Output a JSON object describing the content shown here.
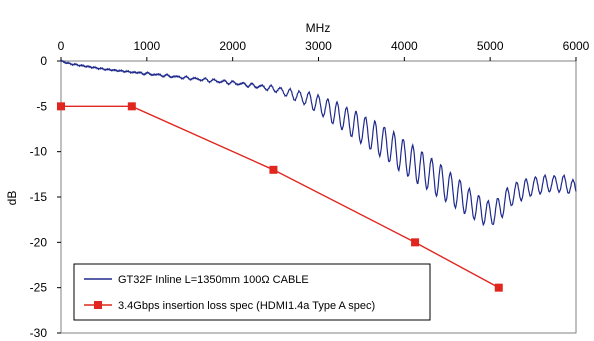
{
  "chart_data": {
    "type": "line",
    "title": "",
    "xlabel": "MHz",
    "ylabel": "dB",
    "xlim": [
      0,
      6000
    ],
    "ylim": [
      -30,
      0
    ],
    "xticks": [
      "0",
      "1000",
      "2000",
      "3000",
      "4000",
      "5000",
      "6000"
    ],
    "yticks": [
      "0",
      "-5",
      "-10",
      "-15",
      "-20",
      "-25",
      "-30"
    ],
    "x_axis_position": "top",
    "grid": false,
    "legend_position": "bottom-left",
    "series": [
      {
        "name": "GT32F Inline L=1350mm 100Ω CABLE",
        "color": "#1f2a8c",
        "marker": "none",
        "x": [
          0,
          100,
          300,
          500,
          800,
          1000,
          1200,
          1500,
          1800,
          2000,
          2300,
          2500,
          2700,
          2900,
          3000,
          3200,
          3500,
          3800,
          4000,
          4300,
          4500,
          4700,
          4800,
          4900,
          5000,
          5100,
          5200,
          5300,
          5500,
          5700,
          5900,
          6000
        ],
        "values": [
          0,
          -0.3,
          -0.6,
          -0.9,
          -1.2,
          -1.4,
          -1.6,
          -1.9,
          -2.2,
          -2.4,
          -2.8,
          -3.1,
          -3.7,
          -4.3,
          -4.8,
          -5.8,
          -7.5,
          -9.2,
          -10.6,
          -12.5,
          -13.8,
          -15.2,
          -15.9,
          -16.5,
          -16.9,
          -16.4,
          -15.2,
          -14.5,
          -13.8,
          -13.5,
          -13.6,
          -14.2
        ],
        "ripple_amplitude": [
          0,
          0,
          0,
          0,
          0,
          0.1,
          0.1,
          0.1,
          0.15,
          0.15,
          0.2,
          0.3,
          0.5,
          0.8,
          1.0,
          1.3,
          1.6,
          1.8,
          1.9,
          1.9,
          1.8,
          1.6,
          1.5,
          1.4,
          1.4,
          1.3,
          1.2,
          1.1,
          1.0,
          0.9,
          0.9,
          0.9
        ],
        "ripple_period_mhz": 110
      },
      {
        "name": "3.4Gbps insertion loss spec (HDMI1.4a Type A spec)",
        "color": "#e0261f",
        "marker": "square",
        "x": [
          0,
          825,
          2475,
          4125,
          5100
        ],
        "values": [
          -5,
          -5,
          -12,
          -20,
          -25
        ]
      }
    ]
  }
}
